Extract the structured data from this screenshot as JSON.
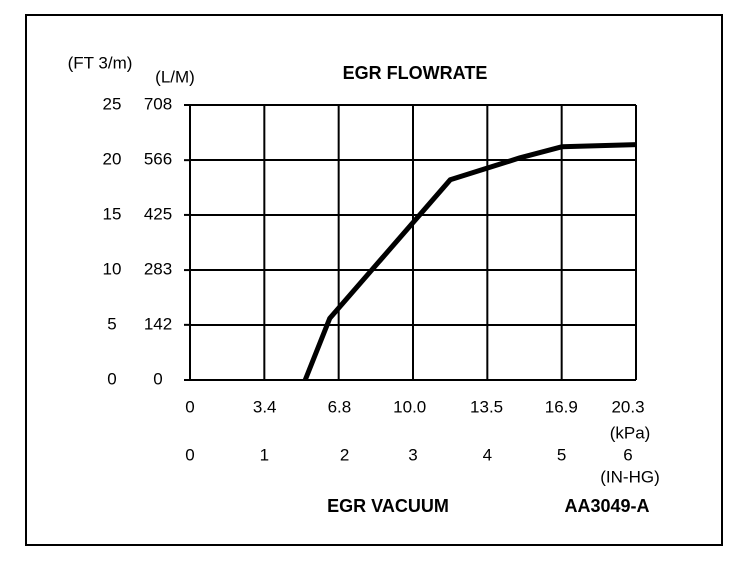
{
  "chart_data": {
    "type": "line",
    "title": "EGR FLOWRATE",
    "y_label": "(FT 3/m)",
    "y2_label": "(L/M)",
    "x_label": "EGR VACUUM",
    "x_unit_label": "(IN-HG)",
    "x2_unit_label": "(kPa)",
    "code": "AA3049-A",
    "x": [
      1.55,
      1.88,
      3.5,
      4.44,
      5.0,
      6.0
    ],
    "series": [
      {
        "color": "#000000",
        "values": [
          0,
          5.6,
          18.2,
          20.2,
          21.2,
          21.4
        ]
      }
    ],
    "xlim": [
      0,
      6
    ],
    "xticks": [
      0,
      1,
      2,
      3,
      4,
      5,
      6
    ],
    "x2lim": [
      0,
      20.3
    ],
    "x2ticks": [
      0,
      3.4,
      6.8,
      {
        "value": 10,
        "label": "10.0"
      },
      13.5,
      16.9,
      20.3
    ],
    "ylim": [
      0,
      25
    ],
    "yticks": [
      0,
      5,
      10,
      15,
      20,
      25
    ],
    "y2lim": [
      0,
      708
    ],
    "y2ticks": [
      0,
      142,
      283,
      425,
      566,
      708
    ],
    "grid": true
  }
}
